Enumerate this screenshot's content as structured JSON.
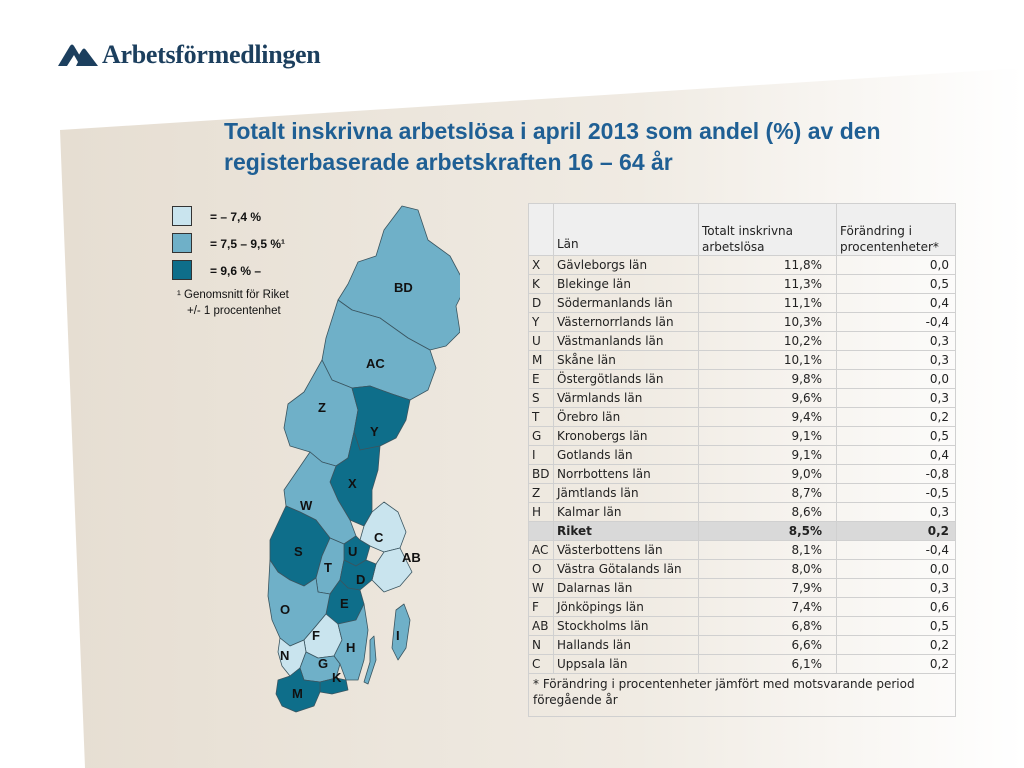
{
  "brand": {
    "logo_text": "Arbetsförmedlingen"
  },
  "title": "Totalt inskrivna arbetslösa i april 2013 som andel (%) av den registerbaserade arbetskraften 16 – 64 år",
  "legend": {
    "items": [
      {
        "label": "= – 7,4 %",
        "color": "#c9e4ee"
      },
      {
        "label": "= 7,5 – 9,5 %¹",
        "color": "#6fb0c8"
      },
      {
        "label": "= 9,6 % –",
        "color": "#0e6e8a"
      }
    ],
    "note_line1": "¹ Genomsnitt för Riket",
    "note_line2": "+/- 1 procentenhet"
  },
  "map": {
    "labels": [
      "BD",
      "AC",
      "Z",
      "Y",
      "X",
      "W",
      "C",
      "S",
      "U",
      "AB",
      "T",
      "D",
      "E",
      "O",
      "F",
      "I",
      "H",
      "N",
      "G",
      "K",
      "M"
    ]
  },
  "table": {
    "headers": {
      "code": "",
      "lan": "Län",
      "value": "Totalt inskrivna arbetslösa",
      "change": "Förändring i procentenheter*"
    },
    "rows": [
      {
        "code": "X",
        "lan": "Gävleborgs län",
        "value": "11,8%",
        "change": "0,0"
      },
      {
        "code": "K",
        "lan": "Blekinge län",
        "value": "11,3%",
        "change": "0,5"
      },
      {
        "code": "D",
        "lan": "Södermanlands län",
        "value": "11,1%",
        "change": "0,4"
      },
      {
        "code": "Y",
        "lan": "Västernorrlands län",
        "value": "10,3%",
        "change": "-0,4"
      },
      {
        "code": "U",
        "lan": "Västmanlands län",
        "value": "10,2%",
        "change": "0,3"
      },
      {
        "code": "M",
        "lan": "Skåne län",
        "value": "10,1%",
        "change": "0,3"
      },
      {
        "code": "E",
        "lan": "Östergötlands län",
        "value": "9,8%",
        "change": "0,0"
      },
      {
        "code": "S",
        "lan": "Värmlands län",
        "value": "9,6%",
        "change": "0,3"
      },
      {
        "code": "T",
        "lan": "Örebro län",
        "value": "9,4%",
        "change": "0,2"
      },
      {
        "code": "G",
        "lan": "Kronobergs län",
        "value": "9,1%",
        "change": "0,5"
      },
      {
        "code": "I",
        "lan": "Gotlands län",
        "value": "9,1%",
        "change": "0,4"
      },
      {
        "code": "BD",
        "lan": "Norrbottens län",
        "value": "9,0%",
        "change": "-0,8"
      },
      {
        "code": "Z",
        "lan": "Jämtlands län",
        "value": "8,7%",
        "change": "-0,5"
      },
      {
        "code": "H",
        "lan": "Kalmar län",
        "value": "8,6%",
        "change": "0,3"
      },
      {
        "code": "",
        "lan": "Riket",
        "value": "8,5%",
        "change": "0,2",
        "highlight": true
      },
      {
        "code": "AC",
        "lan": "Västerbottens län",
        "value": "8,1%",
        "change": "-0,4"
      },
      {
        "code": "O",
        "lan": "Västra Götalands län",
        "value": "8,0%",
        "change": "0,0"
      },
      {
        "code": "W",
        "lan": "Dalarnas län",
        "value": "7,9%",
        "change": "0,3"
      },
      {
        "code": "F",
        "lan": "Jönköpings län",
        "value": "7,4%",
        "change": "0,6"
      },
      {
        "code": "AB",
        "lan": "Stockholms län",
        "value": "6,8%",
        "change": "0,5"
      },
      {
        "code": "N",
        "lan": "Hallands län",
        "value": "6,6%",
        "change": "0,2"
      },
      {
        "code": "C",
        "lan": "Uppsala län",
        "value": "6,1%",
        "change": "0,2"
      }
    ],
    "footnote": "* Förändring i procentenheter jämfört med motsvarande period föregående år"
  }
}
